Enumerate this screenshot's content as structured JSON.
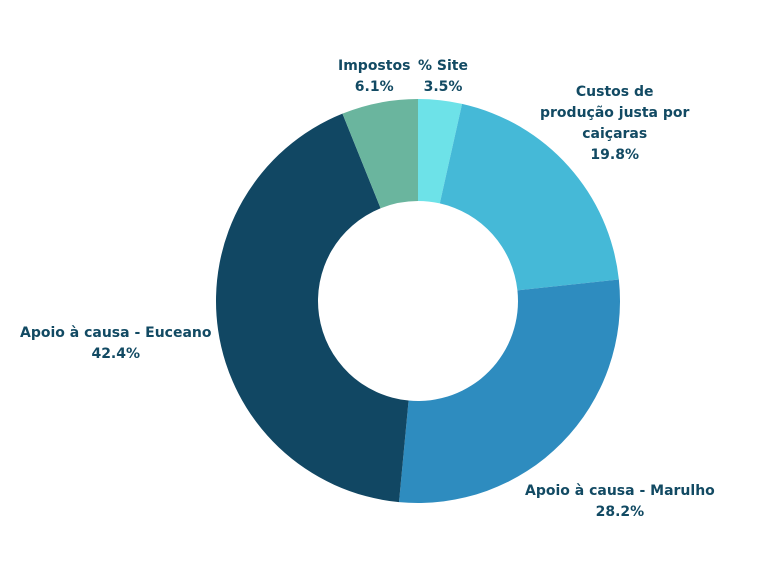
{
  "chart_data": {
    "type": "pie",
    "donut": true,
    "title": "",
    "start": "top",
    "direction": "clockwise",
    "slices": [
      {
        "label": "% Site",
        "label_lines": [
          "% Site"
        ],
        "value": 3.5,
        "display": "3.5%",
        "color": "#6de2e8"
      },
      {
        "label": "Custos de produção justa por caiçaras",
        "label_lines": [
          "Custos de",
          "produção justa por",
          "caiçaras"
        ],
        "value": 19.8,
        "display": "19.8%",
        "color": "#45b9d7"
      },
      {
        "label": "Apoio à causa - Marulho",
        "label_lines": [
          "Apoio à causa - Marulho"
        ],
        "value": 28.2,
        "display": "28.2%",
        "color": "#2e8cbf"
      },
      {
        "label": "Apoio à causa - Euceano",
        "label_lines": [
          "Apoio à causa - Euceano"
        ],
        "value": 42.4,
        "display": "42.4%",
        "color": "#114763"
      },
      {
        "label": "Impostos",
        "label_lines": [
          "Impostos"
        ],
        "value": 6.1,
        "display": "6.1%",
        "color": "#6ab59e"
      }
    ]
  }
}
